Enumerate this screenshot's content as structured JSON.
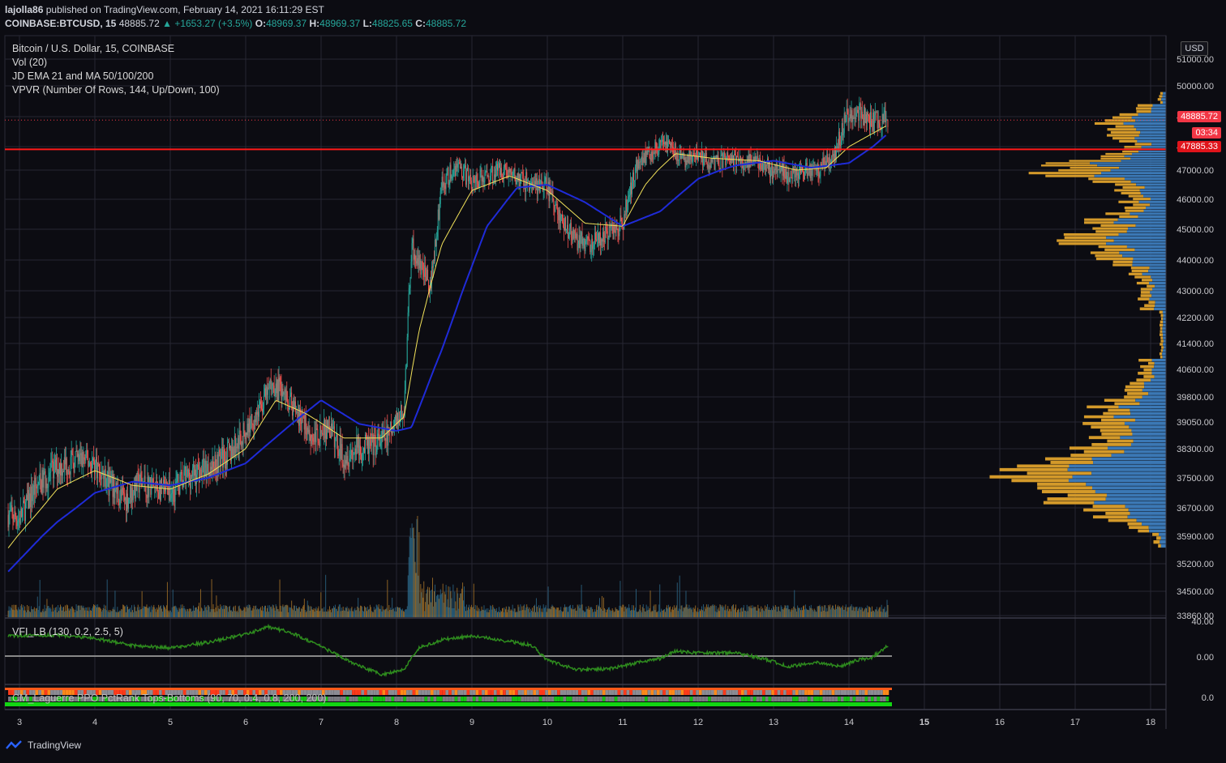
{
  "header": {
    "publisher": "lajolla86",
    "published_text": "published on TradingView.com, February 14, 2021 16:11:29 EST",
    "symbol": "COINBASE:BTCUSD, 15",
    "last": "48885.72",
    "change": "▲ +1653.27 (+3.5%)",
    "o_label": "O:",
    "o": "48969.37",
    "h_label": "H:",
    "h": "48969.37",
    "l_label": "L:",
    "l": "48825.65",
    "c_label": "C:",
    "c": "48885.72"
  },
  "legend": {
    "title": "Bitcoin / U.S. Dollar, 15, COINBASE",
    "vol": "Vol (20)",
    "ema": "JD EMA 21 and MA 50/100/200",
    "vpvr": "VPVR (Number Of Rows, 144, Up/Down, 100)"
  },
  "indicators": {
    "vfi": "VFI_LB (130, 0.2, 2.5, 5)",
    "laguerre": "CM_Laguerre PPO PctRank Tops-Bottoms (90, 70, 0.4, 0.8, 200, 200)"
  },
  "axis": {
    "currency": "USD",
    "last_price_label": "48885.72",
    "countdown": "03:34",
    "line_price_label": "47885.33",
    "vfi_ticks": [
      "40.00",
      "0.00"
    ],
    "lag_ticks": [
      "0.0"
    ]
  },
  "footer": {
    "brand": "TradingView"
  },
  "colors": {
    "background": "#0c0c12",
    "grid": "#262632",
    "up": "#26a69a",
    "down": "#ef5350",
    "ema": "#f2e25a",
    "ma": "#1f2bd8",
    "vpvr_up": "#3b78b5",
    "vpvr_down": "#d49a2a",
    "hline": "#ff1a1a",
    "vfi": "#2e8b1e"
  },
  "chart_data": {
    "type": "candlestick",
    "x_ticks": [
      "3",
      "4",
      "5",
      "6",
      "7",
      "8",
      "9",
      "10",
      "11",
      "12",
      "13",
      "14",
      "15",
      "16",
      "17",
      "18"
    ],
    "y_ticks": [
      51000,
      50000,
      49000,
      48000,
      47000,
      46000,
      45000,
      44000,
      43000,
      42200,
      41400,
      40600,
      39800,
      39050,
      38300,
      37500,
      36700,
      35900,
      35200,
      34500,
      33860
    ],
    "y_tick_labels": [
      "51000.00",
      "50000.00",
      "49000.00",
      "48000.00",
      "47000.00",
      "46000.00",
      "45000.00",
      "44000.00",
      "43000.00",
      "42200.00",
      "41400.00",
      "40600.00",
      "39800.00",
      "39050.00",
      "38300.00",
      "37500.00",
      "36700.00",
      "35900.00",
      "35200.00",
      "34500.00",
      "33860.00"
    ],
    "price_path": [
      [
        2.85,
        36500
      ],
      [
        3.0,
        36400
      ],
      [
        3.2,
        37200
      ],
      [
        3.5,
        37800
      ],
      [
        3.8,
        38000
      ],
      [
        4.0,
        37900
      ],
      [
        4.2,
        37300
      ],
      [
        4.4,
        36900
      ],
      [
        4.6,
        37400
      ],
      [
        4.8,
        37200
      ],
      [
        5.0,
        37100
      ],
      [
        5.2,
        37500
      ],
      [
        5.5,
        37800
      ],
      [
        5.8,
        38200
      ],
      [
        6.0,
        38800
      ],
      [
        6.2,
        39500
      ],
      [
        6.35,
        40200
      ],
      [
        6.5,
        39900
      ],
      [
        6.7,
        39300
      ],
      [
        6.9,
        38600
      ],
      [
        7.1,
        38900
      ],
      [
        7.3,
        38100
      ],
      [
        7.5,
        38300
      ],
      [
        7.7,
        38400
      ],
      [
        7.9,
        38700
      ],
      [
        8.0,
        39000
      ],
      [
        8.1,
        39400
      ],
      [
        8.2,
        44500
      ],
      [
        8.3,
        43800
      ],
      [
        8.45,
        43200
      ],
      [
        8.6,
        46500
      ],
      [
        8.8,
        47200
      ],
      [
        9.0,
        46600
      ],
      [
        9.2,
        46800
      ],
      [
        9.4,
        47100
      ],
      [
        9.6,
        46700
      ],
      [
        9.8,
        46500
      ],
      [
        10.0,
        46400
      ],
      [
        10.2,
        45200
      ],
      [
        10.4,
        44600
      ],
      [
        10.6,
        44500
      ],
      [
        10.8,
        44900
      ],
      [
        11.0,
        45200
      ],
      [
        11.2,
        47400
      ],
      [
        11.4,
        47800
      ],
      [
        11.6,
        48100
      ],
      [
        11.8,
        47400
      ],
      [
        12.0,
        47600
      ],
      [
        12.2,
        47300
      ],
      [
        12.4,
        47500
      ],
      [
        12.6,
        47300
      ],
      [
        12.8,
        47400
      ],
      [
        13.0,
        47000
      ],
      [
        13.2,
        46900
      ],
      [
        13.4,
        47000
      ],
      [
        13.6,
        47100
      ],
      [
        13.8,
        47600
      ],
      [
        13.95,
        48900
      ],
      [
        14.1,
        49200
      ],
      [
        14.3,
        48800
      ],
      [
        14.5,
        48886
      ]
    ],
    "ema21": [
      [
        2.85,
        35600
      ],
      [
        3.5,
        37200
      ],
      [
        4.0,
        37700
      ],
      [
        4.5,
        37300
      ],
      [
        5.0,
        37200
      ],
      [
        5.5,
        37600
      ],
      [
        6.0,
        38300
      ],
      [
        6.4,
        39700
      ],
      [
        6.8,
        39300
      ],
      [
        7.3,
        38600
      ],
      [
        7.8,
        38600
      ],
      [
        8.1,
        39200
      ],
      [
        8.3,
        41800
      ],
      [
        8.6,
        44500
      ],
      [
        9.0,
        46300
      ],
      [
        9.5,
        46800
      ],
      [
        10.0,
        46300
      ],
      [
        10.5,
        45200
      ],
      [
        11.0,
        45100
      ],
      [
        11.3,
        46500
      ],
      [
        11.7,
        47700
      ],
      [
        12.2,
        47500
      ],
      [
        12.8,
        47400
      ],
      [
        13.3,
        47000
      ],
      [
        13.7,
        47100
      ],
      [
        14.0,
        48000
      ],
      [
        14.5,
        48700
      ]
    ],
    "ma": [
      [
        2.85,
        35000
      ],
      [
        3.5,
        36300
      ],
      [
        4.0,
        37100
      ],
      [
        4.5,
        37400
      ],
      [
        5.0,
        37300
      ],
      [
        5.5,
        37500
      ],
      [
        6.0,
        37900
      ],
      [
        6.5,
        38800
      ],
      [
        7.0,
        39700
      ],
      [
        7.5,
        39000
      ],
      [
        8.0,
        38800
      ],
      [
        8.2,
        38900
      ],
      [
        8.6,
        41200
      ],
      [
        9.2,
        45100
      ],
      [
        9.6,
        46400
      ],
      [
        10.0,
        46500
      ],
      [
        10.5,
        45900
      ],
      [
        11.0,
        45100
      ],
      [
        11.5,
        45600
      ],
      [
        12.0,
        46700
      ],
      [
        12.5,
        47200
      ],
      [
        13.0,
        47400
      ],
      [
        13.5,
        47100
      ],
      [
        14.0,
        47300
      ],
      [
        14.5,
        48400
      ]
    ],
    "hline": 47885.33,
    "last_price": 48885.72
  }
}
